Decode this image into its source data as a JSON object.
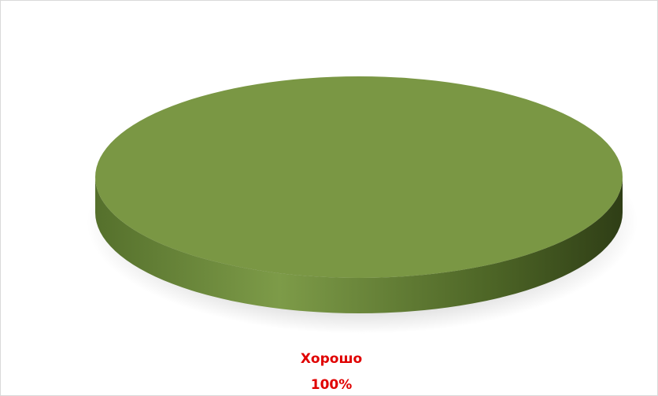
{
  "chart_data": {
    "type": "pie",
    "categories": [
      "Хорошо"
    ],
    "values": [
      100
    ],
    "value_labels": [
      "100%"
    ],
    "colors": [
      "#7a9744"
    ]
  }
}
